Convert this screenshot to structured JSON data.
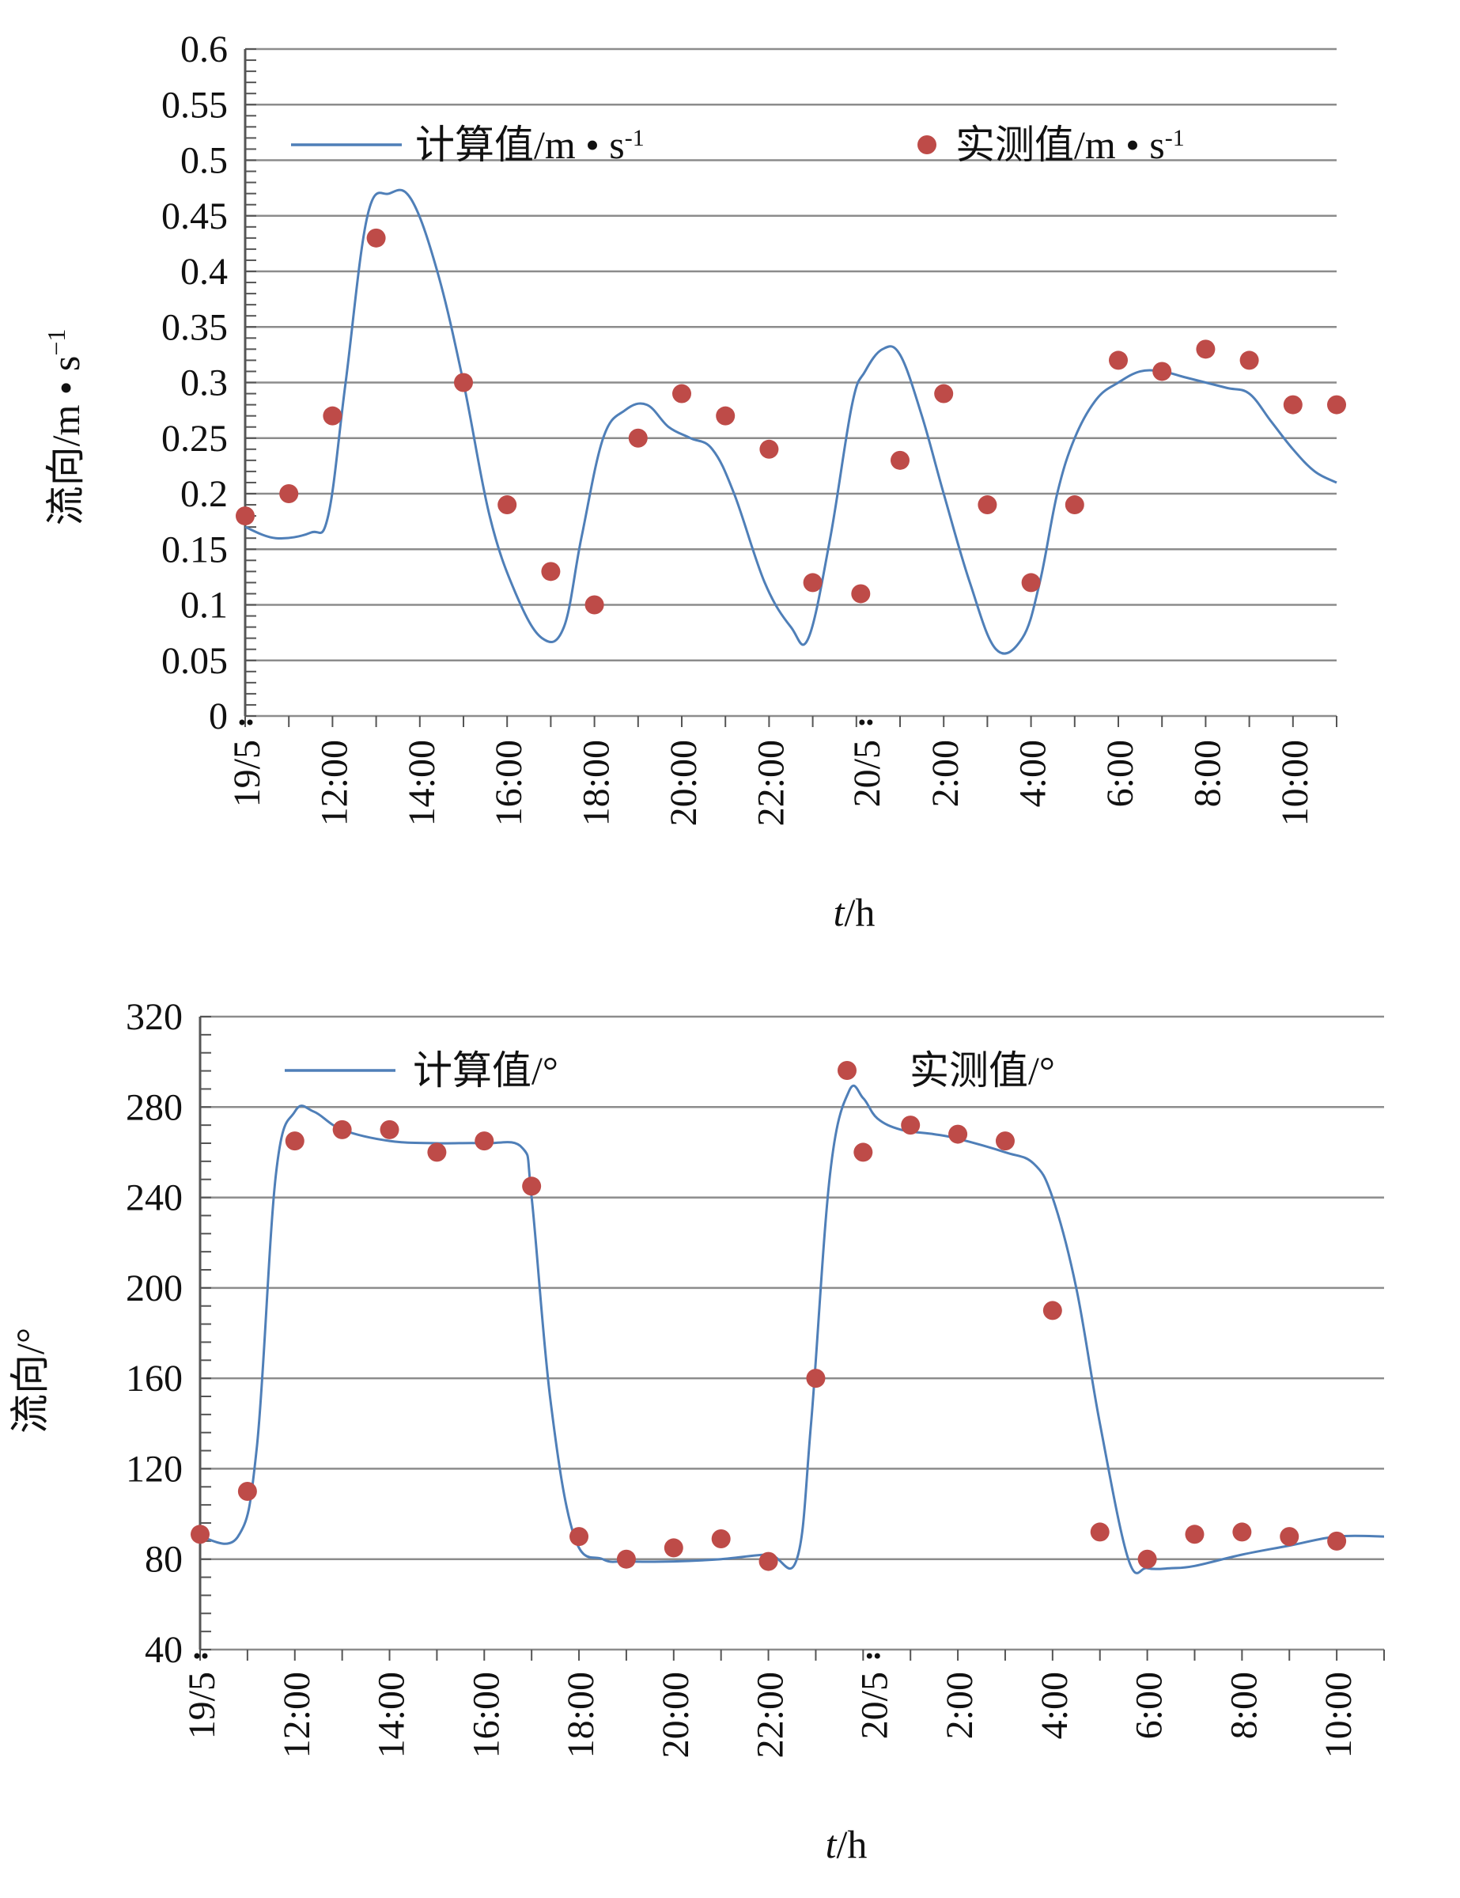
{
  "chart_data": [
    {
      "type": "line",
      "ylabel": "流向/m • s",
      "ylabel_sup": "−1",
      "xlabel_italic": "t",
      "xlabel_rest": "/h",
      "ylim": [
        0,
        0.6
      ],
      "yticks": [
        0,
        0.05,
        0.1,
        0.15,
        0.2,
        0.25,
        0.3,
        0.35,
        0.4,
        0.45,
        0.5,
        0.55,
        0.6
      ],
      "ytick_labels": [
        "0",
        "0.05",
        "0.1",
        "0.15",
        "0.2",
        "0.25",
        "0.3",
        "0.35",
        "0.4",
        "0.45",
        "0.5",
        "0.55",
        "0.6"
      ],
      "xlim": [
        0,
        25
      ],
      "xticks": [
        0,
        2,
        4,
        6,
        8,
        10,
        12.75,
        15,
        17,
        19,
        21,
        23
      ],
      "xtick_labels": [
        "19/5",
        "12:00",
        "14:00",
        "16:00",
        "18:00",
        "20:00",
        "22:00",
        "20/5",
        "2:00",
        "4:00",
        "6:00",
        "8:00",
        "10:00"
      ],
      "xtick_pos": [
        0,
        2,
        4,
        6,
        8,
        10,
        12,
        14.2,
        16,
        18,
        20,
        22,
        24
      ],
      "grid": true,
      "legend": [
        {
          "kind": "line",
          "label": "计算值/m • s",
          "sup": "-1",
          "color": "#4f7fb8"
        },
        {
          "kind": "marker",
          "label": "实测值/m • s",
          "sup": "-1",
          "color": "#be4b48"
        }
      ],
      "series": [
        {
          "name": "计算值/m • s-1",
          "kind": "line",
          "color": "#4f7fb8",
          "x": [
            0,
            0.7,
            1.5,
            1.9,
            2.3,
            2.8,
            3.3,
            3.8,
            4.4,
            5.0,
            5.6,
            6.2,
            6.8,
            7.3,
            7.7,
            8.2,
            8.7,
            9.2,
            9.7,
            10.2,
            10.7,
            11.2,
            11.9,
            12.5,
            12.9,
            13.4,
            13.9,
            14.2,
            14.6,
            15.0,
            15.5,
            16.0,
            16.6,
            17.2,
            17.8,
            18.2,
            18.6,
            19.0,
            19.5,
            20.0,
            20.5,
            21.0,
            21.5,
            22.0,
            22.5,
            23.0,
            23.5,
            24.0,
            24.5,
            25.0
          ],
          "y": [
            0.17,
            0.16,
            0.165,
            0.18,
            0.3,
            0.45,
            0.47,
            0.465,
            0.4,
            0.3,
            0.18,
            0.11,
            0.07,
            0.08,
            0.16,
            0.25,
            0.275,
            0.28,
            0.26,
            0.25,
            0.24,
            0.2,
            0.12,
            0.08,
            0.07,
            0.16,
            0.28,
            0.31,
            0.33,
            0.325,
            0.27,
            0.2,
            0.12,
            0.06,
            0.07,
            0.12,
            0.2,
            0.25,
            0.285,
            0.3,
            0.31,
            0.31,
            0.305,
            0.3,
            0.295,
            0.29,
            0.265,
            0.24,
            0.22,
            0.21
          ]
        },
        {
          "name": "实测值/m • s-1",
          "kind": "scatter",
          "color": "#be4b48",
          "x": [
            0,
            1,
            2,
            3,
            5,
            6,
            7,
            8,
            9,
            10,
            11,
            12,
            13,
            14.1,
            15,
            16,
            17,
            18,
            19,
            20,
            21,
            22,
            23,
            24,
            25
          ],
          "y": [
            0.18,
            0.2,
            0.27,
            0.43,
            0.3,
            0.19,
            0.13,
            0.1,
            0.25,
            0.29,
            0.27,
            0.24,
            0.12,
            0.11,
            0.23,
            0.29,
            0.19,
            0.12,
            0.19,
            0.32,
            0.31,
            0.33,
            0.32,
            0.28,
            0.28
          ]
        }
      ]
    },
    {
      "type": "line",
      "ylabel": "流向/°",
      "xlabel_italic": "t",
      "xlabel_rest": "/h",
      "ylim": [
        40,
        320
      ],
      "yticks": [
        40,
        80,
        120,
        160,
        200,
        240,
        280,
        320
      ],
      "ytick_labels": [
        "40",
        "80",
        "120",
        "160",
        "200",
        "240",
        "280",
        "320"
      ],
      "xtick_labels": [
        "19/5",
        "12:00",
        "14:00",
        "16:00",
        "18:00",
        "20:00",
        "22:00",
        "20/5",
        "2:00",
        "4:00",
        "6:00",
        "8:00",
        "10:00"
      ],
      "xtick_pos": [
        0,
        2,
        4,
        6,
        8,
        10,
        12,
        14.2,
        16,
        18,
        20,
        22,
        24
      ],
      "grid": true,
      "legend": [
        {
          "kind": "line",
          "label": "计算值/°",
          "color": "#4f7fb8"
        },
        {
          "kind": "marker",
          "label": "实测值/°",
          "color": "#be4b48"
        }
      ],
      "series": [
        {
          "name": "计算值/°",
          "kind": "line",
          "color": "#4f7fb8",
          "x": [
            0,
            0.8,
            1.2,
            1.6,
            2.0,
            2.4,
            3,
            4,
            5,
            6,
            6.8,
            7.0,
            7.4,
            7.9,
            8.5,
            9,
            10,
            11,
            12,
            12.6,
            12.9,
            13.3,
            13.7,
            14.0,
            14.3,
            14.8,
            15.5,
            16,
            17,
            17.6,
            18.0,
            18.5,
            19.0,
            19.6,
            20.0,
            20.5,
            21,
            22,
            23,
            24,
            25
          ],
          "y": [
            90,
            90,
            130,
            250,
            278,
            278,
            270,
            265,
            264,
            264,
            262,
            240,
            150,
            90,
            80,
            79,
            79,
            80,
            82,
            80,
            140,
            250,
            287,
            284,
            275,
            270,
            268,
            266,
            260,
            255,
            240,
            200,
            140,
            80,
            76,
            76,
            77,
            82,
            86,
            90,
            90
          ]
        },
        {
          "name": "实测值/°",
          "kind": "scatter",
          "color": "#be4b48",
          "x": [
            0,
            1,
            2,
            3,
            4,
            5,
            6,
            7,
            8,
            9,
            10,
            11,
            12,
            13,
            14,
            15,
            16,
            17,
            18,
            19,
            20,
            21,
            22,
            23,
            24
          ],
          "y": [
            91,
            110,
            265,
            270,
            270,
            260,
            265,
            245,
            90,
            80,
            85,
            89,
            79,
            160,
            260,
            272,
            268,
            265,
            190,
            92,
            80,
            91,
            92,
            90,
            88
          ]
        }
      ]
    }
  ]
}
